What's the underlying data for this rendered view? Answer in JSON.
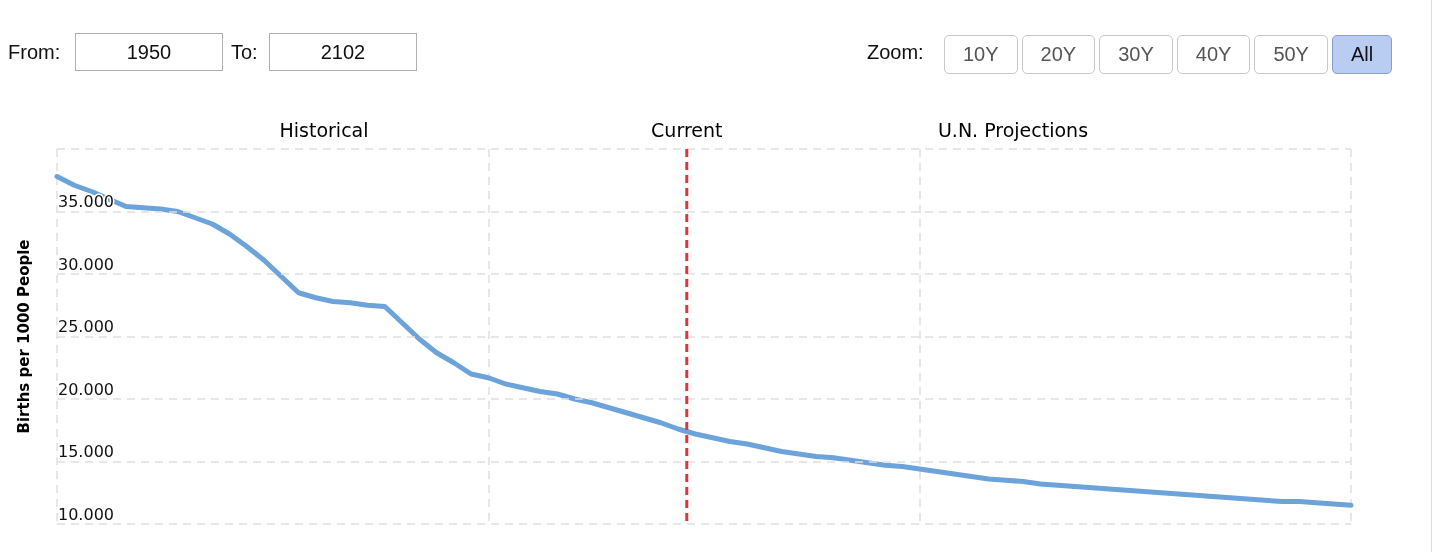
{
  "chart_data": {
    "type": "line",
    "ylabel": "Births per 1000 People",
    "annotations": [
      "From:",
      "1950",
      "To:",
      "2102",
      "Zoom:",
      "10Y",
      "20Y",
      "30Y",
      "40Y",
      "50Y",
      "All",
      "Historical",
      "Current",
      "U.N. Projections"
    ],
    "categories": [
      null,
      null,
      null,
      null,
      null,
      null,
      null,
      null,
      null,
      null,
      null,
      null,
      null,
      null,
      null,
      null,
      null,
      null,
      null,
      null,
      null,
      null,
      null,
      null,
      null,
      null,
      null,
      null,
      null,
      null,
      null,
      null,
      null,
      null,
      null,
      null,
      null,
      null,
      null,
      null,
      null,
      null,
      null,
      null,
      null,
      null,
      null,
      null,
      null,
      null,
      null,
      null,
      null,
      null,
      null,
      null,
      null,
      null,
      null,
      null,
      null,
      null,
      null,
      null,
      null,
      null,
      null,
      null,
      null,
      null,
      null,
      null,
      null,
      null,
      null,
      null
    ],
    "values": [
      37.8,
      37.1,
      36.6,
      36.0,
      35.4,
      35.3,
      35.2,
      35.0,
      34.5,
      34.0,
      33.2,
      32.2,
      31.1,
      29.8,
      28.5,
      28.1,
      27.8,
      27.7,
      27.5,
      27.4,
      26.1,
      24.8,
      23.7,
      22.9,
      22.0,
      21.7,
      21.2,
      20.9,
      20.6,
      20.4,
      20.0,
      19.7,
      19.3,
      18.9,
      18.5,
      18.1,
      17.6,
      17.2,
      16.9,
      16.6,
      16.4,
      16.1,
      15.8,
      15.6,
      15.4,
      15.3,
      15.1,
      14.9,
      14.7,
      14.6,
      14.4,
      14.2,
      14.0,
      13.8,
      13.6,
      13.5,
      13.4,
      13.2,
      13.1,
      13.0,
      12.9,
      12.8,
      12.7,
      12.6,
      12.5,
      12.4,
      12.3,
      12.2,
      12.1,
      12.0,
      11.9,
      11.8,
      11.8,
      11.7,
      11.6,
      11.5
    ],
    "color": "#6ba3da",
    "ylim": [
      10,
      40
    ],
    "yticks": [
      {
        "value": 10,
        "label": "10.000"
      },
      {
        "value": 15,
        "label": "15.000"
      },
      {
        "value": 20,
        "label": "20.000"
      },
      {
        "value": 25,
        "label": "25.000"
      },
      {
        "value": 30,
        "label": "30.000"
      },
      {
        "value": 35,
        "label": "35.000"
      },
      {
        "value": 40,
        "label": null
      }
    ],
    "grid": true,
    "tick_labels": "y",
    "marker": "none",
    "line_style": "solid"
  }
}
